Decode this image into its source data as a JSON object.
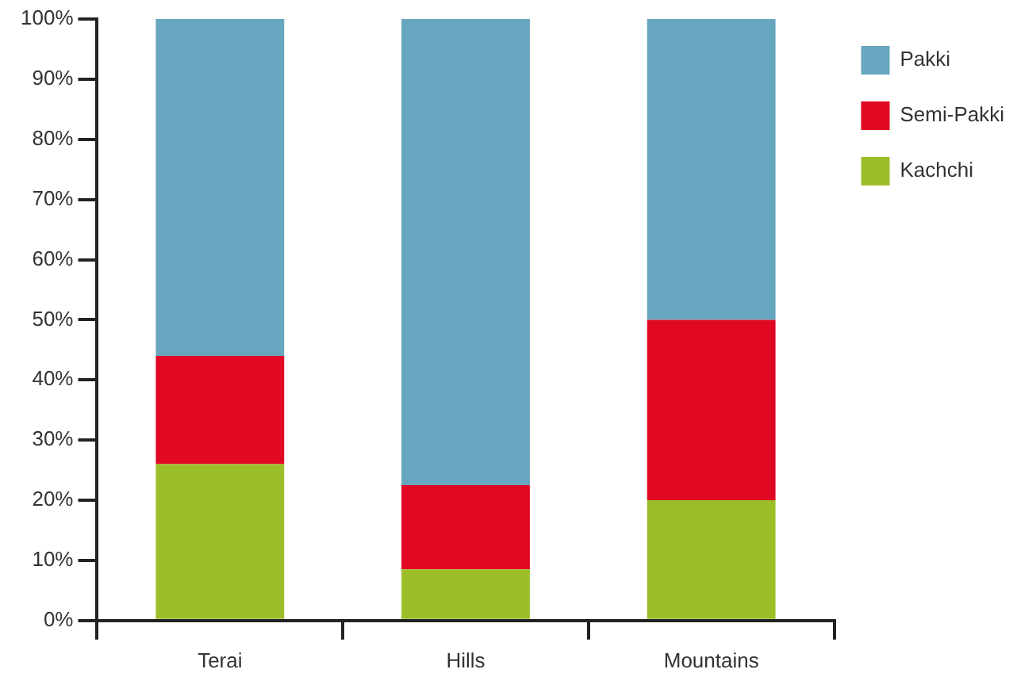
{
  "chart_data": {
    "type": "bar",
    "stacked": true,
    "categories": [
      "Terai",
      "Hills",
      "Mountains"
    ],
    "series": [
      {
        "name": "Kachchi",
        "color": "#9bbe28",
        "values": [
          26,
          8.5,
          20
        ]
      },
      {
        "name": "Semi-Pakki",
        "color": "#e00822",
        "values": [
          18,
          14,
          30
        ]
      },
      {
        "name": "Pakki",
        "color": "#67a6bf",
        "values": [
          56,
          77.5,
          50
        ]
      }
    ],
    "ylim": [
      0,
      100
    ],
    "yticks": [
      {
        "value": 0,
        "label": "0%"
      },
      {
        "value": 10,
        "label": "10%"
      },
      {
        "value": 20,
        "label": "20%"
      },
      {
        "value": 30,
        "label": "30%"
      },
      {
        "value": 40,
        "label": "40%"
      },
      {
        "value": 50,
        "label": "50%"
      },
      {
        "value": 60,
        "label": "60%"
      },
      {
        "value": 70,
        "label": "70%"
      },
      {
        "value": 80,
        "label": "80%"
      },
      {
        "value": 90,
        "label": "90%"
      },
      {
        "value": 100,
        "label": "100%"
      }
    ],
    "grid": false,
    "legend": "top right"
  }
}
